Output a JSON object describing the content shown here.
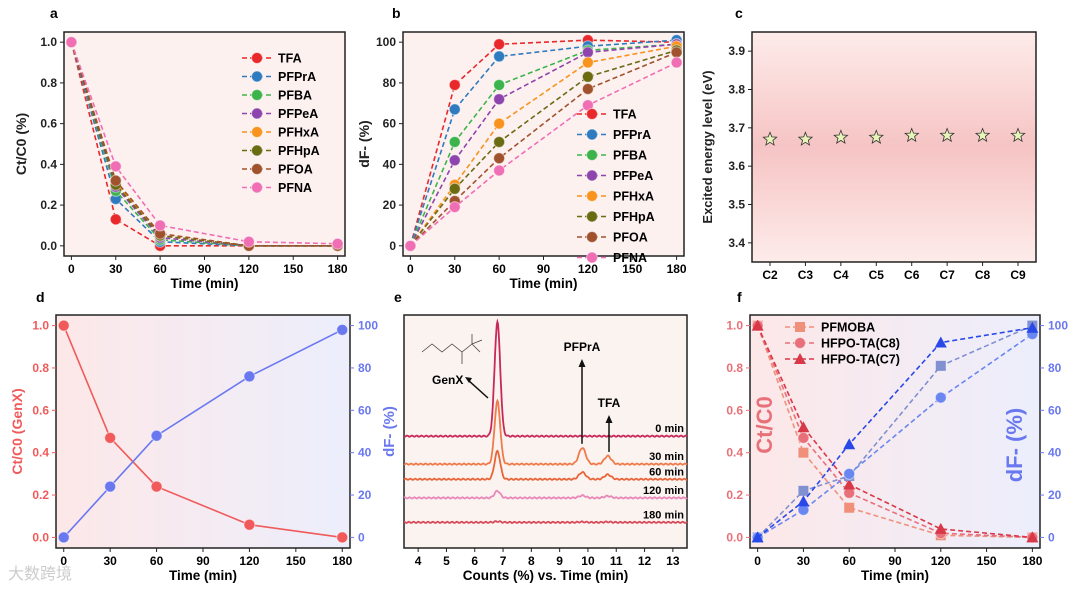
{
  "watermark": "大数跨境",
  "colors": {
    "TFA": "#e8282b",
    "PFPrA": "#2e7bbf",
    "PFBA": "#3cb44b",
    "PFPeA": "#8e44ad",
    "PFHxA": "#f7931e",
    "PFHpA": "#6b6b12",
    "PFOA": "#a0522d",
    "PFNA": "#f06eb4"
  },
  "chart_data": [
    {
      "panel": "a",
      "type": "line",
      "xlabel": "Time (min)",
      "ylabel": "Ct/C0 (%)",
      "xlim": [
        -5,
        185
      ],
      "ylim": [
        -0.05,
        1.05
      ],
      "xticks": [
        0,
        30,
        60,
        90,
        120,
        150,
        180
      ],
      "yticks": [
        0.0,
        0.2,
        0.4,
        0.6,
        0.8,
        1.0
      ],
      "legend": "top-right",
      "x": [
        0,
        30,
        60,
        120,
        180
      ],
      "series": [
        {
          "name": "TFA",
          "values": [
            1,
            0.13,
            0.0,
            0.0,
            0.0
          ]
        },
        {
          "name": "PFPrA",
          "values": [
            1,
            0.23,
            0.02,
            0.0,
            0.0
          ]
        },
        {
          "name": "PFBA",
          "values": [
            1,
            0.27,
            0.03,
            0.0,
            0.0
          ]
        },
        {
          "name": "PFPeA",
          "values": [
            1,
            0.29,
            0.04,
            0.0,
            0.0
          ]
        },
        {
          "name": "PFHxA",
          "values": [
            1,
            0.31,
            0.05,
            0.0,
            0.0
          ]
        },
        {
          "name": "PFHpA",
          "values": [
            1,
            0.3,
            0.05,
            0.0,
            0.0
          ]
        },
        {
          "name": "PFOA",
          "values": [
            1,
            0.32,
            0.06,
            0.0,
            0.0
          ]
        },
        {
          "name": "PFNA",
          "values": [
            1,
            0.39,
            0.1,
            0.02,
            0.01
          ]
        }
      ]
    },
    {
      "panel": "b",
      "type": "line",
      "xlabel": "Time (min)",
      "ylabel": "dF- (%)",
      "xlim": [
        -5,
        185
      ],
      "ylim": [
        -5,
        105
      ],
      "xticks": [
        0,
        30,
        60,
        90,
        120,
        150,
        180
      ],
      "yticks": [
        0,
        20,
        40,
        60,
        80,
        100
      ],
      "legend": "bottom-right",
      "x": [
        0,
        30,
        60,
        120,
        180
      ],
      "series": [
        {
          "name": "TFA",
          "values": [
            0,
            79,
            99,
            101,
            100
          ]
        },
        {
          "name": "PFPrA",
          "values": [
            0,
            67,
            93,
            98,
            101
          ]
        },
        {
          "name": "PFBA",
          "values": [
            0,
            51,
            79,
            96,
            99
          ]
        },
        {
          "name": "PFPeA",
          "values": [
            0,
            42,
            72,
            95,
            99
          ]
        },
        {
          "name": "PFHxA",
          "values": [
            0,
            30,
            60,
            90,
            98
          ]
        },
        {
          "name": "PFHpA",
          "values": [
            0,
            28,
            51,
            83,
            96
          ]
        },
        {
          "name": "PFOA",
          "values": [
            0,
            22,
            43,
            77,
            95
          ]
        },
        {
          "name": "PFNA",
          "values": [
            0,
            19,
            37,
            69,
            90
          ]
        }
      ]
    },
    {
      "panel": "c",
      "type": "scatter",
      "xlabel": "",
      "ylabel": "Excited energy level (eV)",
      "ylim": [
        3.35,
        3.95
      ],
      "yticks": [
        3.4,
        3.5,
        3.6,
        3.7,
        3.8,
        3.9
      ],
      "categories": [
        "C2",
        "C3",
        "C4",
        "C5",
        "C6",
        "C7",
        "C8",
        "C9"
      ],
      "values": [
        3.67,
        3.67,
        3.675,
        3.675,
        3.68,
        3.68,
        3.68,
        3.68
      ]
    },
    {
      "panel": "d",
      "type": "line",
      "xlabel": "Time (min)",
      "ylabel": "Ct/C0 (GenX)",
      "ylabel2": "dF- (%)",
      "xlim": [
        -5,
        185
      ],
      "ylim": [
        -0.05,
        1.05
      ],
      "ylim2": [
        -5,
        105
      ],
      "xticks": [
        0,
        30,
        60,
        90,
        120,
        150,
        180
      ],
      "yticks": [
        0.0,
        0.2,
        0.4,
        0.6,
        0.8,
        1.0
      ],
      "yticks2": [
        0,
        20,
        40,
        60,
        80,
        100
      ],
      "x": [
        0,
        30,
        60,
        120,
        180
      ],
      "series": [
        {
          "name": "Ct/C0 (GenX)",
          "axis": "left",
          "color": "#f05a5a",
          "values": [
            1,
            0.47,
            0.24,
            0.06,
            0.0
          ]
        },
        {
          "name": "dF-",
          "axis": "right",
          "color": "#6a78f0",
          "values": [
            0,
            24,
            48,
            76,
            98
          ]
        }
      ]
    },
    {
      "panel": "e",
      "type": "line",
      "xlabel": "Counts (%) vs. Time (min)",
      "xlim": [
        3.5,
        13.5
      ],
      "ylim": [
        0,
        100
      ],
      "xticks": [
        4,
        5,
        6,
        7,
        8,
        9,
        10,
        11,
        12,
        13
      ],
      "annotations": [
        "GenX",
        "PFPrA",
        "TFA"
      ],
      "peaks": {
        "GenX": 6.8,
        "PFPrA": 9.8,
        "TFA": 10.7
      },
      "series": [
        {
          "name": "0 min",
          "color": "#c8285a",
          "baseline": 48,
          "heights": [
            49,
            0,
            0
          ]
        },
        {
          "name": "30 min",
          "color": "#f07a4a",
          "baseline": 36,
          "heights": [
            27,
            7,
            3.5
          ]
        },
        {
          "name": "60 min",
          "color": "#e8653a",
          "baseline": 29.5,
          "heights": [
            12,
            3,
            2
          ]
        },
        {
          "name": "120 min",
          "color": "#e888b8",
          "baseline": 21.5,
          "heights": [
            3,
            1,
            0.8
          ]
        },
        {
          "name": "180 min",
          "color": "#d84a5a",
          "baseline": 11,
          "heights": [
            0.4,
            0.2,
            0.2
          ]
        }
      ]
    },
    {
      "panel": "f",
      "type": "line",
      "xlabel": "Time (min)",
      "ylabel": "Ct/C0",
      "ylabel2": "dF- (%)",
      "xlim": [
        -5,
        185
      ],
      "ylim": [
        -0.05,
        1.05
      ],
      "ylim2": [
        -5,
        105
      ],
      "xticks": [
        0,
        30,
        60,
        90,
        120,
        150,
        180
      ],
      "yticks": [
        0.0,
        0.2,
        0.4,
        0.6,
        0.8,
        1.0
      ],
      "yticks2": [
        0,
        20,
        40,
        60,
        80,
        100
      ],
      "legend": "top-left",
      "x": [
        0,
        30,
        60,
        120,
        180
      ],
      "series": [
        {
          "name": "PFMOBA",
          "marker": "square",
          "axis": "left",
          "color": "#f0907a",
          "values": [
            1,
            0.4,
            0.14,
            0.01,
            0.0
          ]
        },
        {
          "name": "HFPO-TA(C8)",
          "marker": "circle",
          "axis": "left",
          "color": "#e8707a",
          "values": [
            1,
            0.47,
            0.21,
            0.02,
            0.0
          ]
        },
        {
          "name": "HFPO-TA(C7)",
          "marker": "triangle",
          "axis": "left",
          "color": "#d83848",
          "values": [
            1,
            0.52,
            0.25,
            0.04,
            0.0
          ]
        },
        {
          "name": "PFMOBA dF-",
          "marker": "square",
          "axis": "right",
          "color": "#8090d0",
          "values": [
            0,
            22,
            29,
            81,
            100
          ]
        },
        {
          "name": "HFPO-TA(C8) dF-",
          "marker": "circle",
          "axis": "right",
          "color": "#6a86f0",
          "values": [
            0,
            13,
            30,
            66,
            96
          ]
        },
        {
          "name": "HFPO-TA(C7) dF-",
          "marker": "triangle",
          "axis": "right",
          "color": "#2848e8",
          "values": [
            0,
            17,
            44,
            92,
            99
          ]
        }
      ]
    }
  ]
}
